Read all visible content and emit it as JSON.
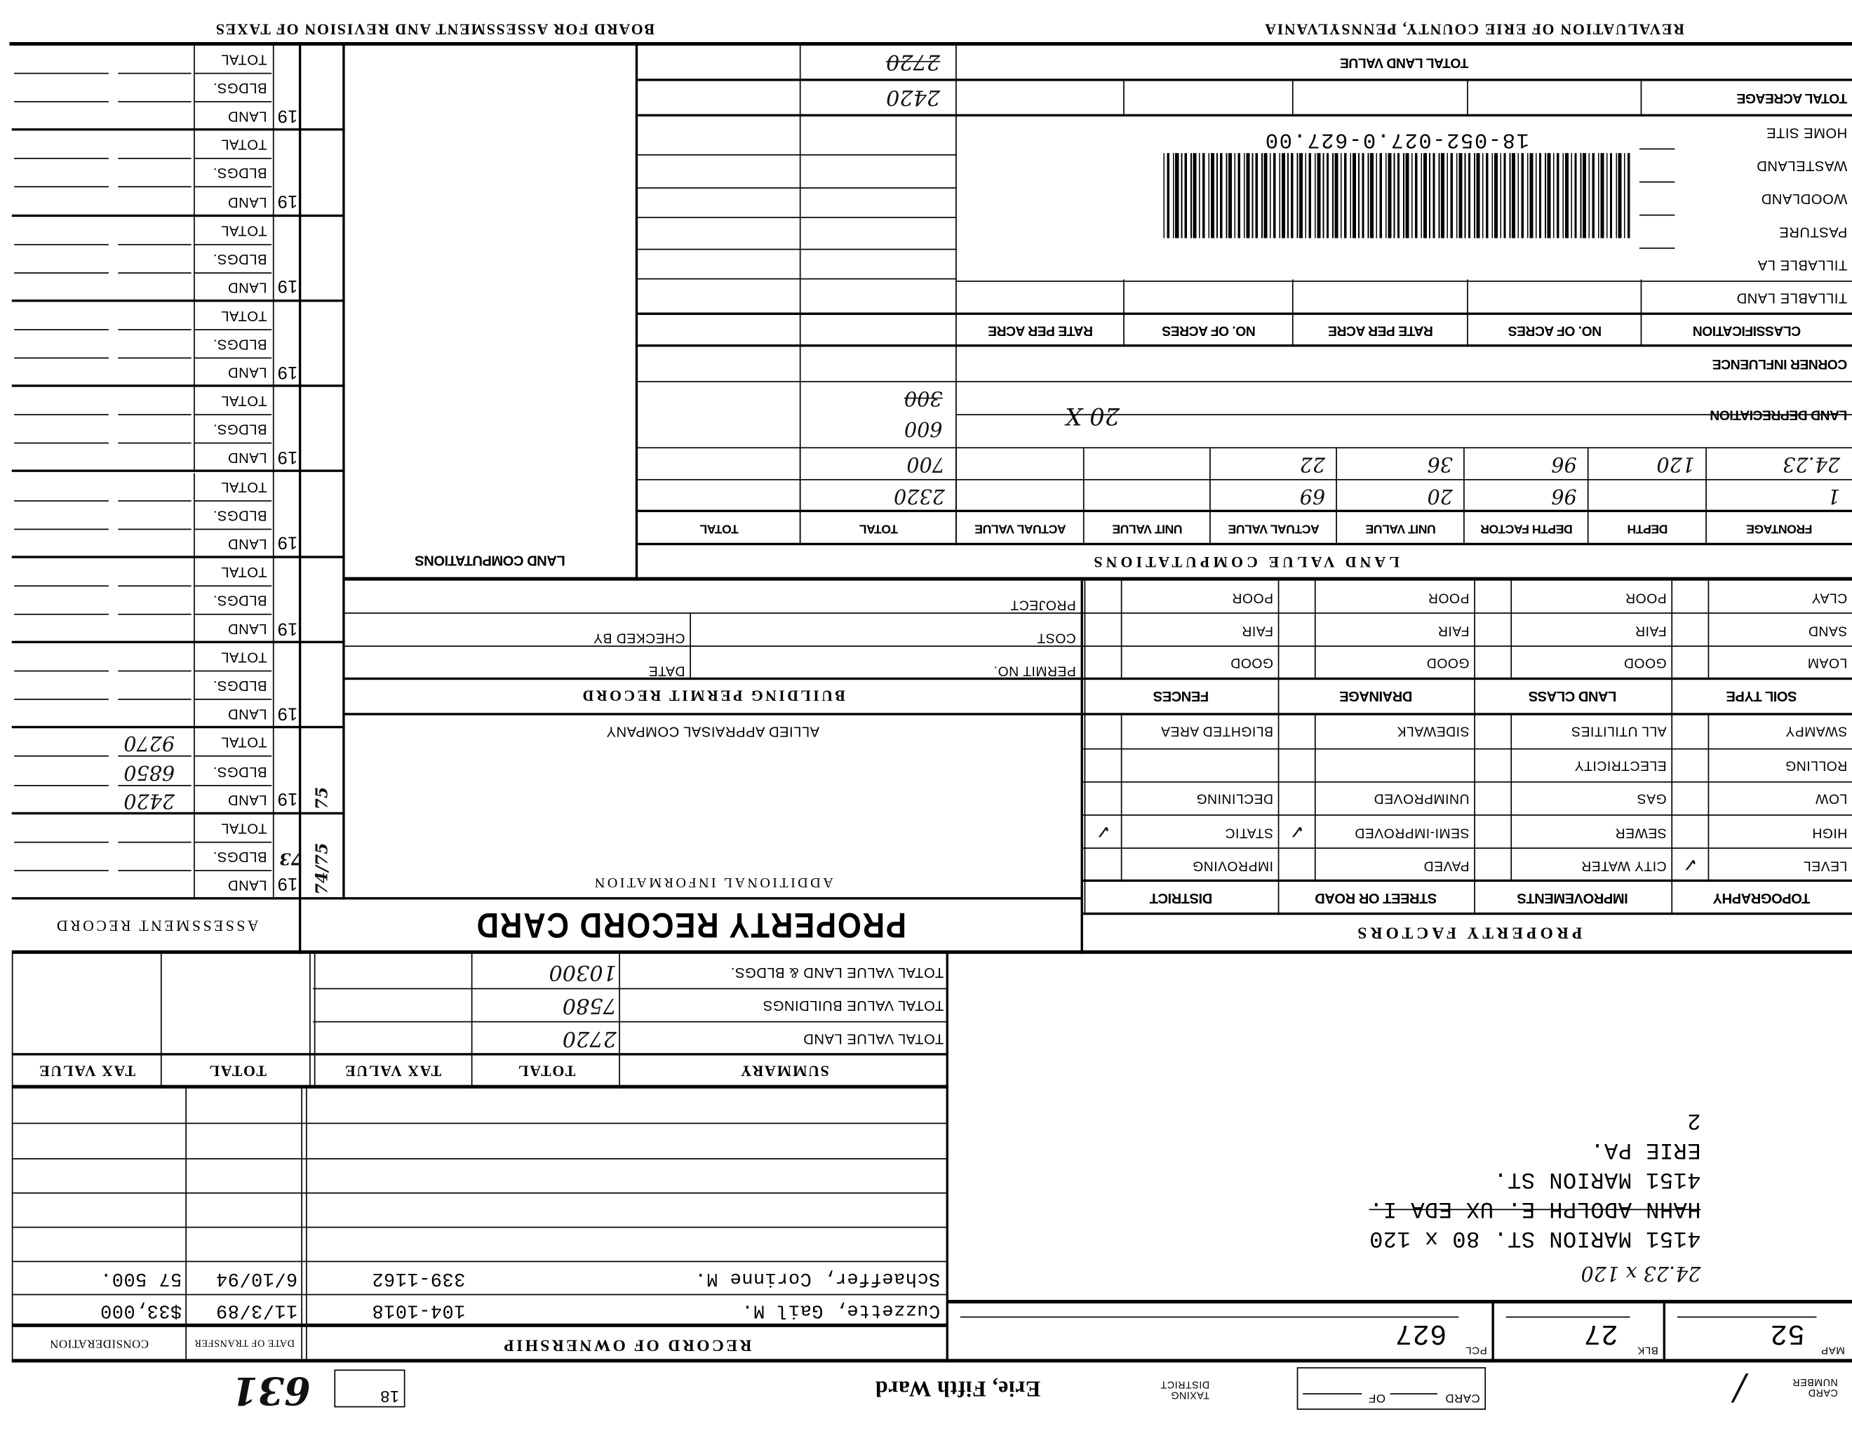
{
  "header": {
    "left_title": "REVALUATION OF ERIE COUNTY, PENNSYLVANIA",
    "right_title": "BOARD FOR ASSESSMENT AND REVISION OF TAXES"
  },
  "card_number": {
    "label": "CARD NUMBER",
    "value": "/",
    "card_label": "CARD",
    "of_label": "OF"
  },
  "taxing_district": {
    "label": "TAXING DISTRICT",
    "value": "Erie, Fifth Ward"
  },
  "box_value": "18",
  "handwritten_code": "631",
  "parcel": {
    "map_label": "MAP",
    "map": "52",
    "blk_label": "BLK",
    "blk": "27",
    "pcl_label": "PCL",
    "pcl": "627"
  },
  "address": {
    "lot_note": "24.23 x 120",
    "lines": [
      "4151 MARION ST.  80 x 120",
      "HAHN ADOLPH E.  UX EDA I.",
      "4151 MARION ST.",
      "ERIE PA.",
      "2"
    ],
    "struck_line": 1
  },
  "ownership": {
    "title": "RECORD OF OWNERSHIP",
    "date_label": "DATE OF TRANSFER",
    "consideration_label": "CONSIDERATION",
    "rows": [
      {
        "name": "Cuzzette, Gail M.",
        "deed": "104-1018",
        "date": "11/3/89",
        "consideration": "$33,000"
      },
      {
        "name": "Schaeffer, Corinne M.",
        "deed": "339-1162",
        "date": "6/10/94",
        "consideration": "57 500."
      }
    ]
  },
  "summary": {
    "headers": [
      "SUMMARY",
      "TOTAL",
      "TAX VALUE",
      "TOTAL",
      "TAX VALUE"
    ],
    "rows": [
      {
        "label": "TOTAL VALUE LAND",
        "total": "2720"
      },
      {
        "label": "TOTAL VALUE BUILDINGS",
        "total": "7580"
      },
      {
        "label": "TOTAL VALUE LAND & BLDGS.",
        "total": "10300"
      }
    ]
  },
  "titles": {
    "property_factors": "PROPERTY FACTORS",
    "property_record_card": "PROPERTY RECORD CARD",
    "assessment_record": "ASSESSMENT RECORD",
    "additional_information": "ADDITIONAL INFORMATION",
    "allied": "ALLIED APPRAISAL COMPANY",
    "building_permit": "BUILDING PERMIT RECORD",
    "land_value_computations": "LAND VALUE COMPUTATIONS",
    "land_computations": "LAND COMPUTATIONS"
  },
  "property_factors": {
    "groups": [
      {
        "header": "TOPOGRAPHY",
        "items": [
          "LEVEL",
          "HIGH",
          "LOW",
          "ROLLING",
          "SWAMPY"
        ],
        "checked": [
          0
        ]
      },
      {
        "header": "IMPROVEMENTS",
        "items": [
          "CITY WATER",
          "SEWER",
          "GAS",
          "ELECTRICITY",
          "ALL UTILITIES"
        ],
        "checked": []
      },
      {
        "header": "STREET OR ROAD",
        "items": [
          "PAVED",
          "SEMI-IMPROVED",
          "UNIMPROVED",
          "",
          "SIDEWALK"
        ],
        "checked": [
          1
        ]
      },
      {
        "header": "DISTRICT",
        "items": [
          "IMPROVING",
          "STATIC",
          "DECLINING",
          "",
          "BLIGHTED AREA"
        ],
        "checked": [
          1
        ]
      }
    ],
    "soil_groups": [
      {
        "header": "SOIL TYPE",
        "items": [
          "LOAM",
          "SAND",
          "CLAY"
        ]
      },
      {
        "header": "LAND CLASS",
        "items": [
          "GOOD",
          "FAIR",
          "POOR"
        ]
      },
      {
        "header": "DRAINAGE",
        "items": [
          "GOOD",
          "FAIR",
          "POOR"
        ]
      },
      {
        "header": "FENCES",
        "items": [
          "GOOD",
          "FAIR",
          "POOR"
        ]
      }
    ],
    "check_mark": "✓"
  },
  "building_permit": {
    "permit_no": "PERMIT NO.",
    "date": "DATE",
    "cost": "COST",
    "checked_by": "CHECKED BY",
    "project": "PROJECT"
  },
  "land_value": {
    "headers": [
      "FRONTAGE",
      "DEPTH",
      "DEPTH FACTOR",
      "UNIT VALUE",
      "ACTUAL VALUE",
      "UNIT VALUE",
      "ACTUAL VALUE",
      "TOTAL",
      "TOTAL"
    ],
    "rows": [
      [
        "1",
        "",
        "96",
        "20",
        "69",
        "",
        "",
        "2320",
        ""
      ],
      [
        "24.23",
        "120",
        "96",
        "36",
        "22",
        "",
        "",
        "700",
        ""
      ]
    ],
    "land_depreciation": {
      "label": "LAND DEPRECIATION",
      "note": "20  X",
      "total": "600",
      "total_struck": "300"
    },
    "corner_influence": "CORNER INFLUENCE",
    "classification_headers": [
      "CLASSIFICATION",
      "NO. OF ACRES",
      "RATE PER ACRE",
      "NO. OF ACRES",
      "RATE PER ACRE"
    ],
    "classification_rows": [
      "TILLABLE LAND",
      "TILLABLE LA",
      "PASTURE",
      "WOODLAND",
      "WASTELAND",
      "HOME SITE"
    ],
    "parcel_number": "18-052-027.0-627.00",
    "total_acreage": "TOTAL ACREAGE",
    "total_land_value": "TOTAL LAND VALUE",
    "total_land_value_amount": "2420",
    "total_land_value_struck": "2720"
  },
  "assessment": {
    "year_prefix": "19",
    "labels": [
      "LAND",
      "BLDGS.",
      "TOTAL"
    ],
    "groups": [
      {
        "year": "73",
        "side_note": "74/75",
        "land": "",
        "bldgs": "",
        "total": ""
      },
      {
        "year": "",
        "side_note": "75",
        "land": "2420",
        "bldgs": "6850",
        "total": "9270"
      },
      {
        "year": "",
        "side_note": "",
        "land": "",
        "bldgs": "",
        "total": ""
      },
      {
        "year": "",
        "side_note": "",
        "land": "",
        "bldgs": "",
        "total": ""
      },
      {
        "year": "",
        "side_note": "",
        "land": "",
        "bldgs": "",
        "total": ""
      },
      {
        "year": "",
        "side_note": "",
        "land": "",
        "bldgs": "",
        "total": ""
      },
      {
        "year": "",
        "side_note": "",
        "land": "",
        "bldgs": "",
        "total": ""
      },
      {
        "year": "",
        "side_note": "",
        "land": "",
        "bldgs": "",
        "total": ""
      },
      {
        "year": "",
        "side_note": "",
        "land": "",
        "bldgs": "",
        "total": ""
      },
      {
        "year": "",
        "side_note": "",
        "land": "",
        "bldgs": "",
        "total": ""
      }
    ]
  }
}
